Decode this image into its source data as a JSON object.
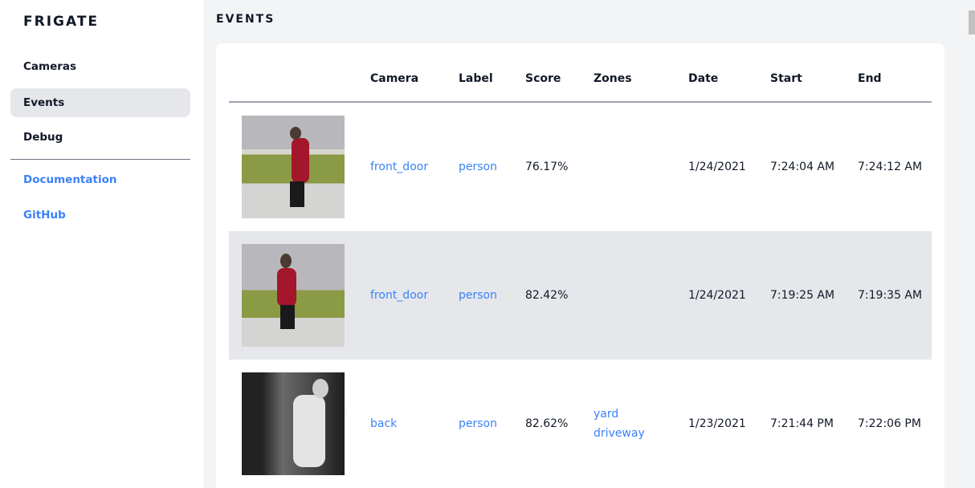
{
  "sidebar": {
    "logo": "FRIGATE",
    "items": [
      {
        "label": "Cameras"
      },
      {
        "label": "Events",
        "active": true
      },
      {
        "label": "Debug"
      }
    ],
    "links": [
      {
        "label": "Documentation"
      },
      {
        "label": "GitHub"
      }
    ]
  },
  "page": {
    "title": "EVENTS"
  },
  "table": {
    "headers": [
      "Camera",
      "Label",
      "Score",
      "Zones",
      "Date",
      "Start",
      "End"
    ],
    "rows": [
      {
        "camera": "front_door",
        "label": "person",
        "score": "76.17%",
        "zones": [
          "",
          ""
        ],
        "date": "1/24/2021",
        "start": "7:24:04 AM",
        "end": "7:24:12 AM"
      },
      {
        "camera": "front_door",
        "label": "person",
        "score": "82.42%",
        "zones": [
          "",
          ""
        ],
        "date": "1/24/2021",
        "start": "7:19:25 AM",
        "end": "7:19:35 AM"
      },
      {
        "camera": "back",
        "label": "person",
        "score": "82.62%",
        "zones": [
          "yard",
          "driveway"
        ],
        "date": "1/23/2021",
        "start": "7:21:44 PM",
        "end": "7:22:06 PM"
      }
    ]
  },
  "colors": {
    "accent": "#3b82f6",
    "active_bg": "#e5e7eb"
  }
}
